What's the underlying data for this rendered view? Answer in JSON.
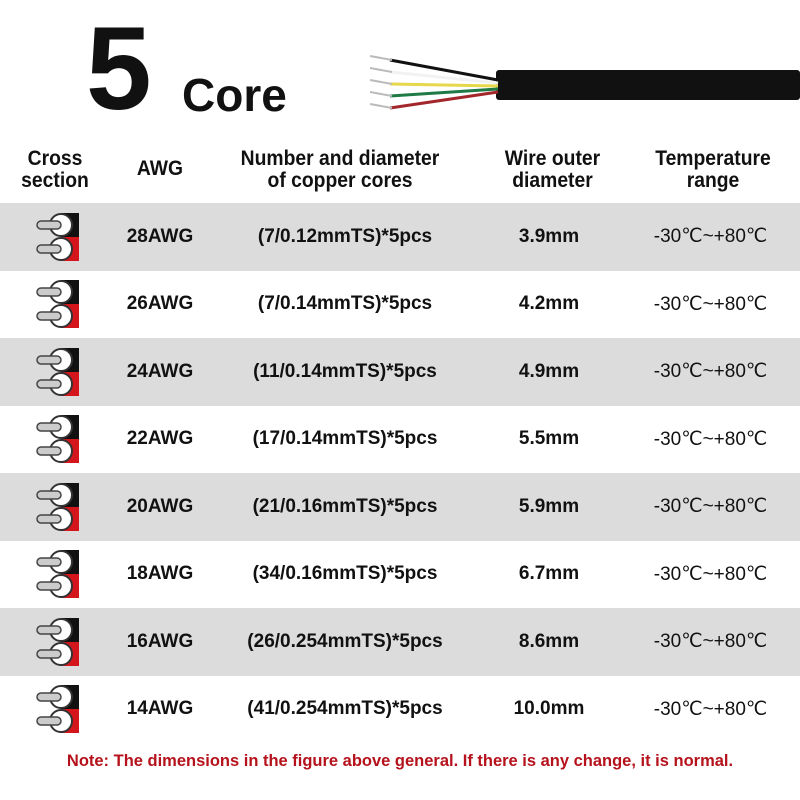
{
  "title": {
    "number": "5",
    "word": "Core"
  },
  "wire_colors": [
    "#111111",
    "#f2f2f2",
    "#e6d84a",
    "#1f7a45",
    "#a3262a"
  ],
  "colors": {
    "row_alt": "#dcdcdc",
    "note": "#b5121b"
  },
  "headers": {
    "cross_section": [
      "Cross",
      "section"
    ],
    "awg": "AWG",
    "cores": [
      "Number and diameter",
      "of copper cores"
    ],
    "diameter": [
      "Wire outer",
      "diameter"
    ],
    "temperature": [
      "Temperature",
      "range"
    ]
  },
  "rows": [
    {
      "awg": "28AWG",
      "cores": "(7/0.12mmTS)*5pcs",
      "diameter": "3.9mm",
      "temp": "-30℃~+80℃"
    },
    {
      "awg": "26AWG",
      "cores": "(7/0.14mmTS)*5pcs",
      "diameter": "4.2mm",
      "temp": "-30℃~+80℃"
    },
    {
      "awg": "24AWG",
      "cores": "(11/0.14mmTS)*5pcs",
      "diameter": "4.9mm",
      "temp": "-30℃~+80℃"
    },
    {
      "awg": "22AWG",
      "cores": "(17/0.14mmTS)*5pcs",
      "diameter": "5.5mm",
      "temp": "-30℃~+80℃"
    },
    {
      "awg": "20AWG",
      "cores": "(21/0.16mmTS)*5pcs",
      "diameter": "5.9mm",
      "temp": "-30℃~+80℃"
    },
    {
      "awg": "18AWG",
      "cores": "(34/0.16mmTS)*5pcs",
      "diameter": "6.7mm",
      "temp": "-30℃~+80℃"
    },
    {
      "awg": "16AWG",
      "cores": "(26/0.254mmTS)*5pcs",
      "diameter": "8.6mm",
      "temp": "-30℃~+80℃"
    },
    {
      "awg": "14AWG",
      "cores": "(41/0.254mmTS)*5pcs",
      "diameter": "10.0mm",
      "temp": "-30℃~+80℃"
    }
  ],
  "note": "Note: The dimensions in the figure above general. If there is any change, it is normal."
}
